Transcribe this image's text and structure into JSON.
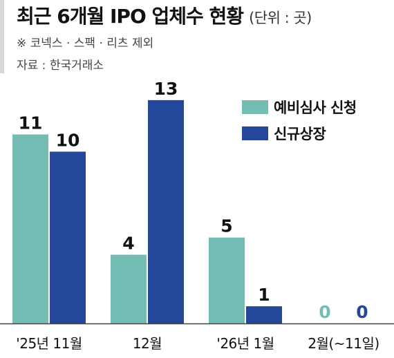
{
  "header": {
    "title": "최근 6개월 IPO 업체수 현황",
    "unit": "(단위 : 곳)",
    "note": "※ 코넥스 · 스팩 · 리츠 제외",
    "source": "자료 : 한국거래소"
  },
  "chart_data": {
    "type": "bar",
    "title": "최근 6개월 IPO 업체수 현황",
    "unit": "곳",
    "categories": [
      "'25년 11월",
      "12월",
      "'26년 1월",
      "2월(~11일)"
    ],
    "series": [
      {
        "name": "예비심사 신청",
        "values": [
          11,
          4,
          5,
          0
        ],
        "color": "#74bdb5"
      },
      {
        "name": "신규상장",
        "values": [
          10,
          13,
          1,
          0
        ],
        "color": "#24479c"
      }
    ],
    "ylim": [
      0,
      14
    ],
    "grid": false,
    "legend_position": "top-right"
  }
}
